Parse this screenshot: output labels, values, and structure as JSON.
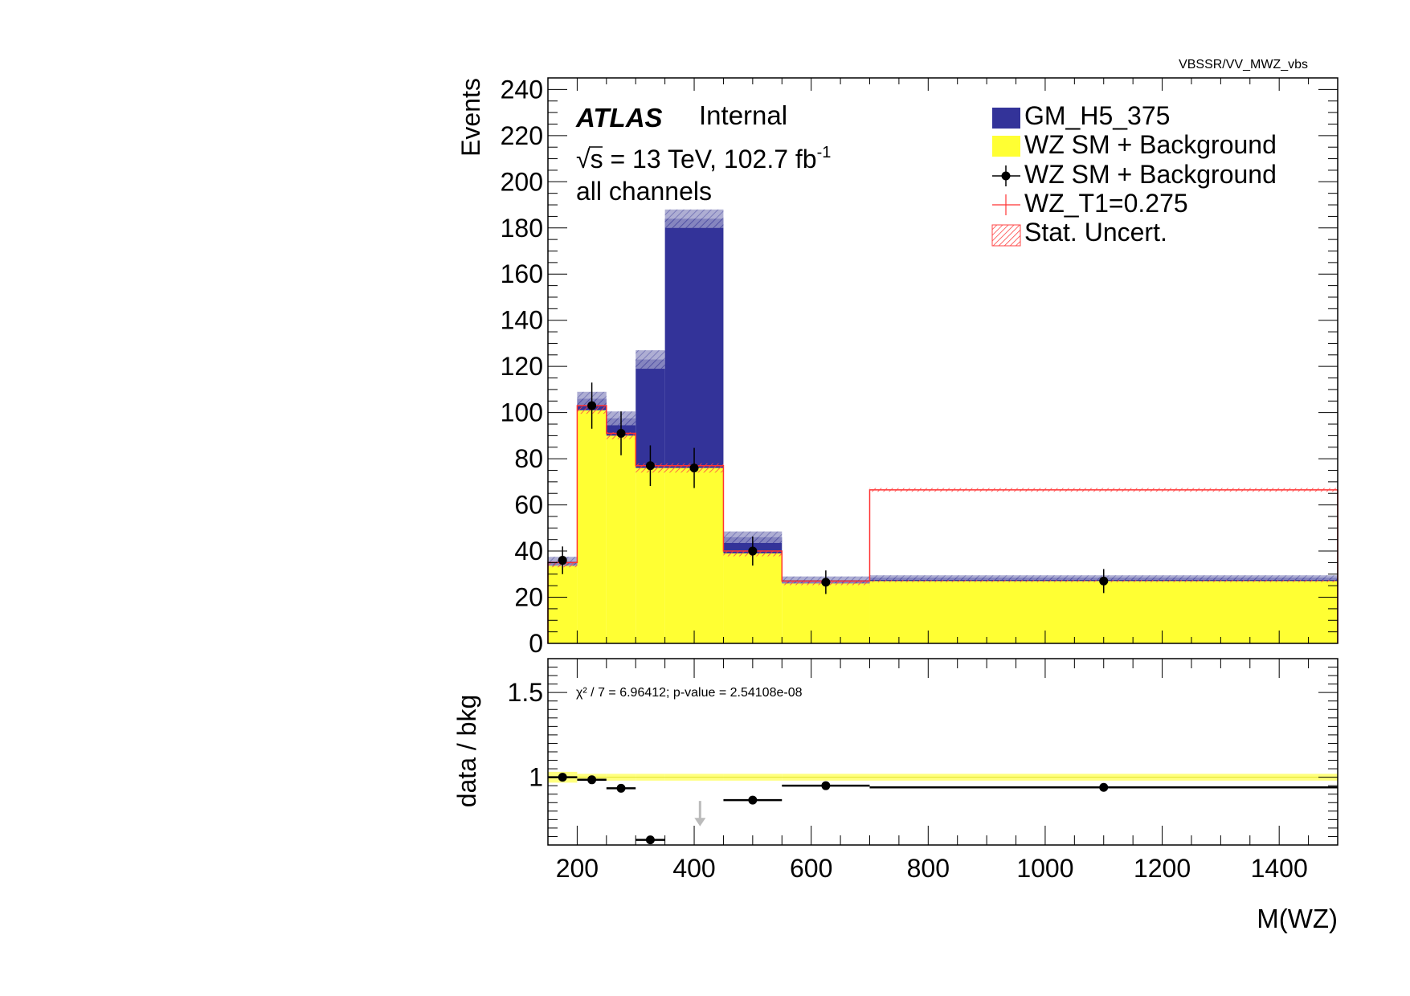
{
  "chart_data": {
    "type": "bar",
    "path_label": "VBSSR/VV_MWZ_vbs",
    "experiment": "ATLAS",
    "status": "Internal",
    "energy_label": "s = 13 TeV, 102.7 fb",
    "lumi_exponent": "-1",
    "sqrt_symbol": "√",
    "region": "all channels",
    "xlabel": "M(WZ)",
    "ylabel": "Events",
    "ratio_ylabel": "data / bkg",
    "x_edges": [
      150,
      200,
      250,
      300,
      350,
      450,
      550,
      700,
      1500
    ],
    "xlim": [
      150,
      1500
    ],
    "ylim": [
      0,
      245
    ],
    "x_ticks": [
      200,
      400,
      600,
      800,
      1000,
      1200,
      1400
    ],
    "y_ticks": [
      0,
      20,
      40,
      60,
      80,
      100,
      120,
      140,
      160,
      180,
      200,
      220,
      240
    ],
    "series": [
      {
        "name": "WZ SM + Background",
        "kind": "stack",
        "color": "#ffff33",
        "values": [
          34,
          101,
          90,
          76,
          76,
          39,
          26,
          27
        ]
      },
      {
        "name": "GM_H5_375",
        "kind": "stack",
        "color": "#333399",
        "values": [
          1.5,
          5,
          7.5,
          47,
          108,
          7,
          1.5,
          1.5
        ]
      },
      {
        "name": "WZ_T1=0.275",
        "kind": "line",
        "color": "#ff3333",
        "values": [
          35,
          103,
          91,
          77,
          77,
          40,
          27,
          66.5
        ]
      },
      {
        "name": "WZ SM + Background",
        "kind": "points",
        "color": "#000000",
        "x": [
          175,
          225,
          275,
          325,
          400,
          500,
          625,
          1100
        ],
        "values": [
          36,
          103,
          91,
          77,
          76,
          40,
          26.5,
          27
        ],
        "errors": [
          6,
          10,
          9.5,
          8.8,
          8.7,
          6.3,
          5.1,
          5.2
        ]
      }
    ],
    "stat_uncert_label": "Stat. Uncert.",
    "stat_uncert": [
      2,
      3,
      3,
      4,
      4,
      2.5,
      1.5,
      1
    ],
    "ratio": {
      "ylim": [
        0.6,
        1.7
      ],
      "y_ticks": [
        1,
        1.5
      ],
      "y_tick_labels": [
        "1",
        "1.5"
      ],
      "x": [
        175,
        225,
        275,
        325,
        500,
        625,
        1100
      ],
      "xerr_lo": [
        150,
        200,
        250,
        300,
        450,
        550,
        700
      ],
      "xerr_hi": [
        200,
        250,
        300,
        350,
        550,
        700,
        1500
      ],
      "values": [
        1.0,
        0.985,
        0.935,
        0.63,
        0.865,
        0.95,
        0.94
      ],
      "offscale_arrow_x": 410,
      "band_halfwidth": 0.02,
      "annotation": "χ² / 7 = 6.96412; p-value = 2.54108e-08"
    },
    "legend_position": "top-right"
  }
}
